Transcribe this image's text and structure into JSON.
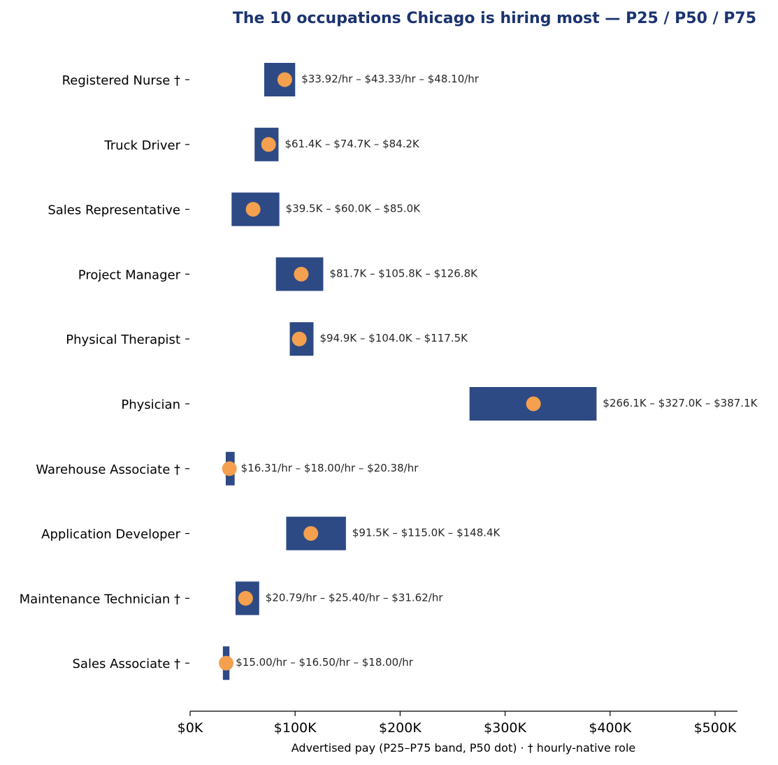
{
  "chart_data": {
    "type": "bar",
    "orientation": "horizontal",
    "title": "The 10 occupations Chicago is hiring most — P25 / P50 / P75",
    "xlabel": "Advertised pay (P25–P75 band, P50 dot) · † hourly-native role",
    "ylabel": "",
    "xlim": [
      0,
      520000
    ],
    "x_ticks": [
      0,
      100000,
      200000,
      300000,
      400000,
      500000
    ],
    "x_tick_labels": [
      "$0K",
      "$100K",
      "$200K",
      "$300K",
      "$400K",
      "$500K"
    ],
    "grid": false,
    "colors": {
      "band": "#2e4a85",
      "dot": "#f4a04e",
      "title": "#1b3370"
    },
    "categories": [
      "Registered Nurse †",
      "Truck Driver",
      "Sales Representative",
      "Project Manager",
      "Physical Therapist",
      "Physician",
      "Warehouse Associate †",
      "Application Developer",
      "Maintenance Technician †",
      "Sales Associate †"
    ],
    "series": [
      {
        "name": "P25",
        "values": [
          70550,
          61400,
          39500,
          81700,
          94900,
          266100,
          33925,
          91500,
          43245,
          31200
        ]
      },
      {
        "name": "P50",
        "values": [
          90125,
          74700,
          60000,
          105800,
          104000,
          327000,
          37440,
          115000,
          52830,
          34320
        ]
      },
      {
        "name": "P75",
        "values": [
          100050,
          84200,
          85000,
          126800,
          117500,
          387100,
          42390,
          148400,
          65770,
          37440
        ]
      }
    ],
    "annotations": [
      "$33.92/hr – $43.33/hr – $48.10/hr",
      "$61.4K – $74.7K – $84.2K",
      "$39.5K – $60.0K – $85.0K",
      "$81.7K – $105.8K – $126.8K",
      "$94.9K – $104.0K – $117.5K",
      "$266.1K – $327.0K – $387.1K",
      "$16.31/hr – $18.00/hr – $20.38/hr",
      "$91.5K – $115.0K – $148.4K",
      "$20.79/hr – $25.40/hr – $31.62/hr",
      "$15.00/hr – $16.50/hr – $18.00/hr"
    ]
  }
}
